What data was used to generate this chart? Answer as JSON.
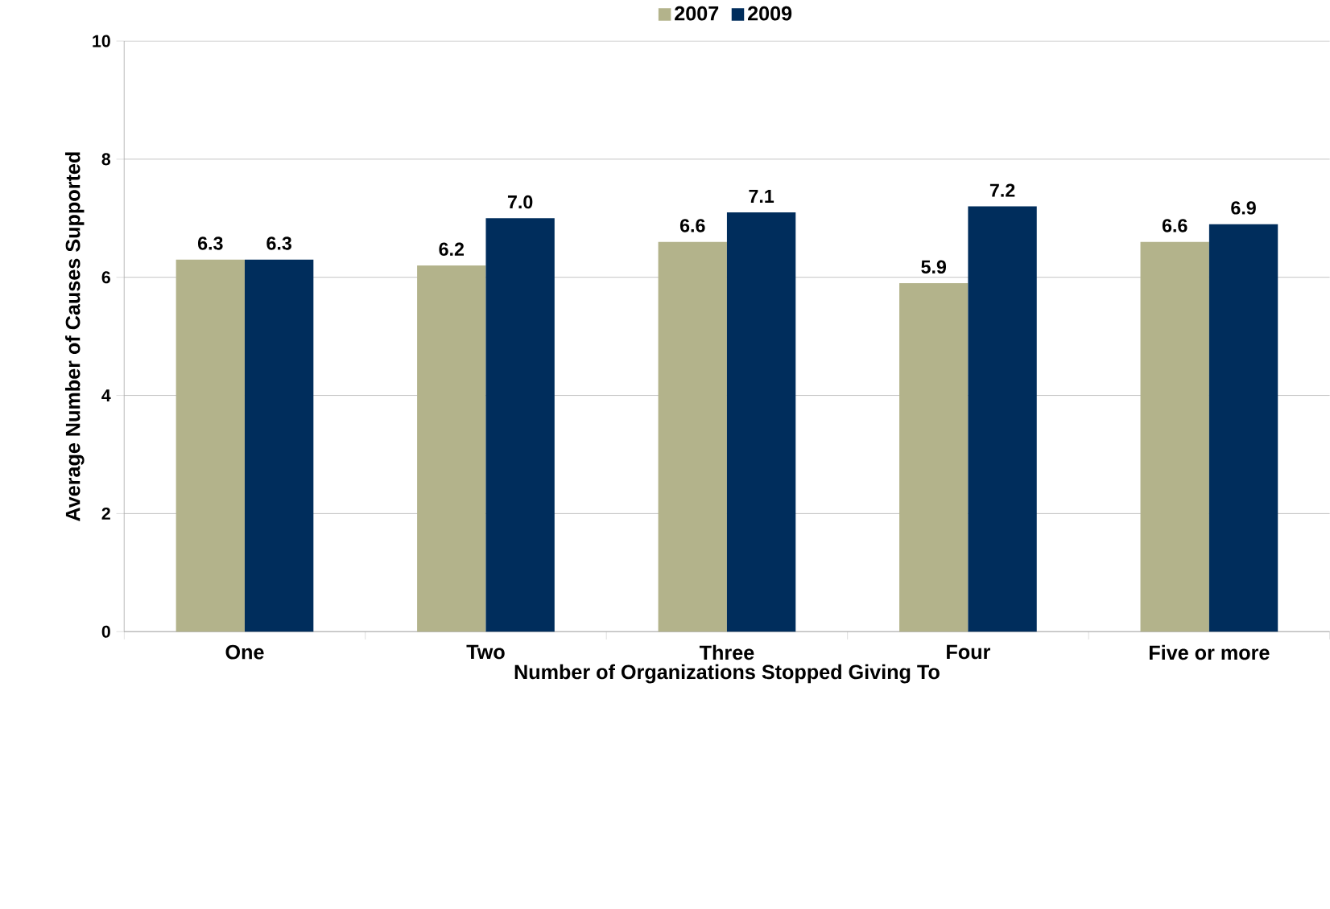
{
  "chart_data": {
    "type": "bar",
    "xlabel": "Number of Organizations Stopped Giving To",
    "ylabel": "Average Number of Causes Supported",
    "categories": [
      "One",
      "Two",
      "Three",
      "Four",
      "Five or more"
    ],
    "series": [
      {
        "name": "2007",
        "color": "#b3b38b",
        "values": [
          6.3,
          6.2,
          6.6,
          5.9,
          6.6
        ],
        "value_labels": [
          "6.3",
          "6.2",
          "6.6",
          "5.9",
          "6.6"
        ]
      },
      {
        "name": "2009",
        "color": "#002d5c",
        "values": [
          6.3,
          7.0,
          7.1,
          7.2,
          6.9
        ],
        "value_labels": [
          "6.3",
          "7.0",
          "7.1",
          "7.2",
          "6.9"
        ]
      }
    ],
    "ylim": [
      0,
      10
    ],
    "yticks": [
      0,
      2,
      4,
      6,
      8,
      10
    ],
    "grid": "y",
    "legend": "top"
  }
}
